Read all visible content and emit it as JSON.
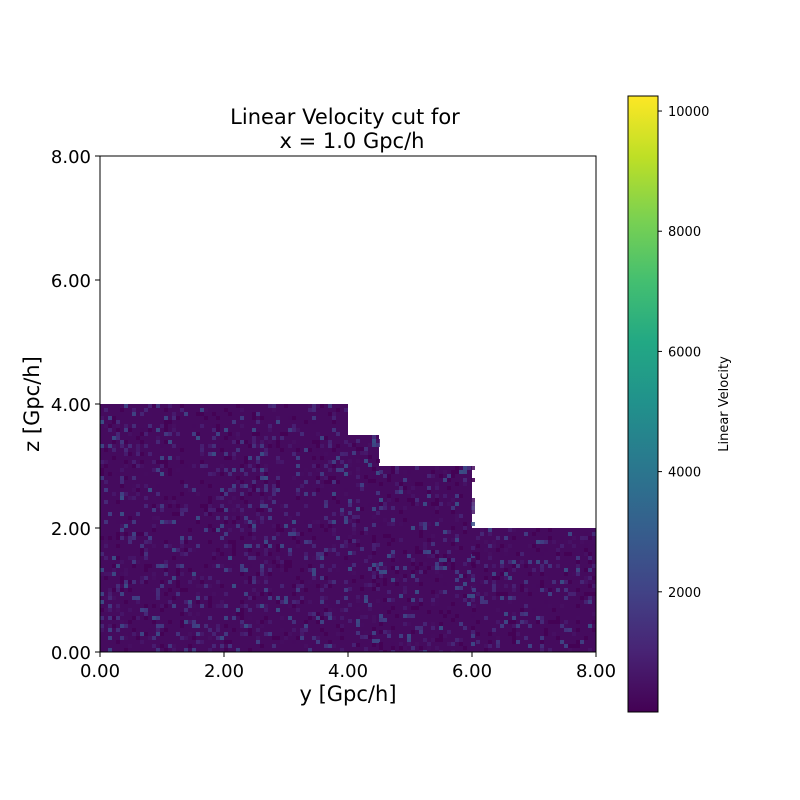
{
  "chart_data": {
    "type": "heatmap",
    "title_lines": [
      "Linear Velocity cut for",
      "x = 1.0 Gpc/h"
    ],
    "xlabel": "y [Gpc/h]",
    "ylabel": "z [Gpc/h]",
    "xlim": [
      0,
      8
    ],
    "ylim": [
      0,
      8
    ],
    "xticks": [
      "0.00",
      "2.00",
      "4.00",
      "6.00",
      "8.00"
    ],
    "yticks": [
      "0.00",
      "2.00",
      "4.00",
      "6.00",
      "8.00"
    ],
    "colormap": "viridis",
    "colorbar": {
      "label": "Linear Velocity",
      "range": [
        0,
        10250
      ],
      "ticks": [
        "2000",
        "4000",
        "6000",
        "8000",
        "10000"
      ]
    },
    "data_region_steps": [
      {
        "y_from": 0,
        "y_to": 4.0,
        "z_top": 4.0
      },
      {
        "y_from": 4.0,
        "y_to": 4.5,
        "z_top": 3.5
      },
      {
        "y_from": 4.5,
        "y_to": 6.0,
        "z_top": 3.0
      },
      {
        "y_from": 6.0,
        "y_to": 8.0,
        "z_top": 2.0
      }
    ],
    "typical_value": 300,
    "max_value": 10250
  }
}
